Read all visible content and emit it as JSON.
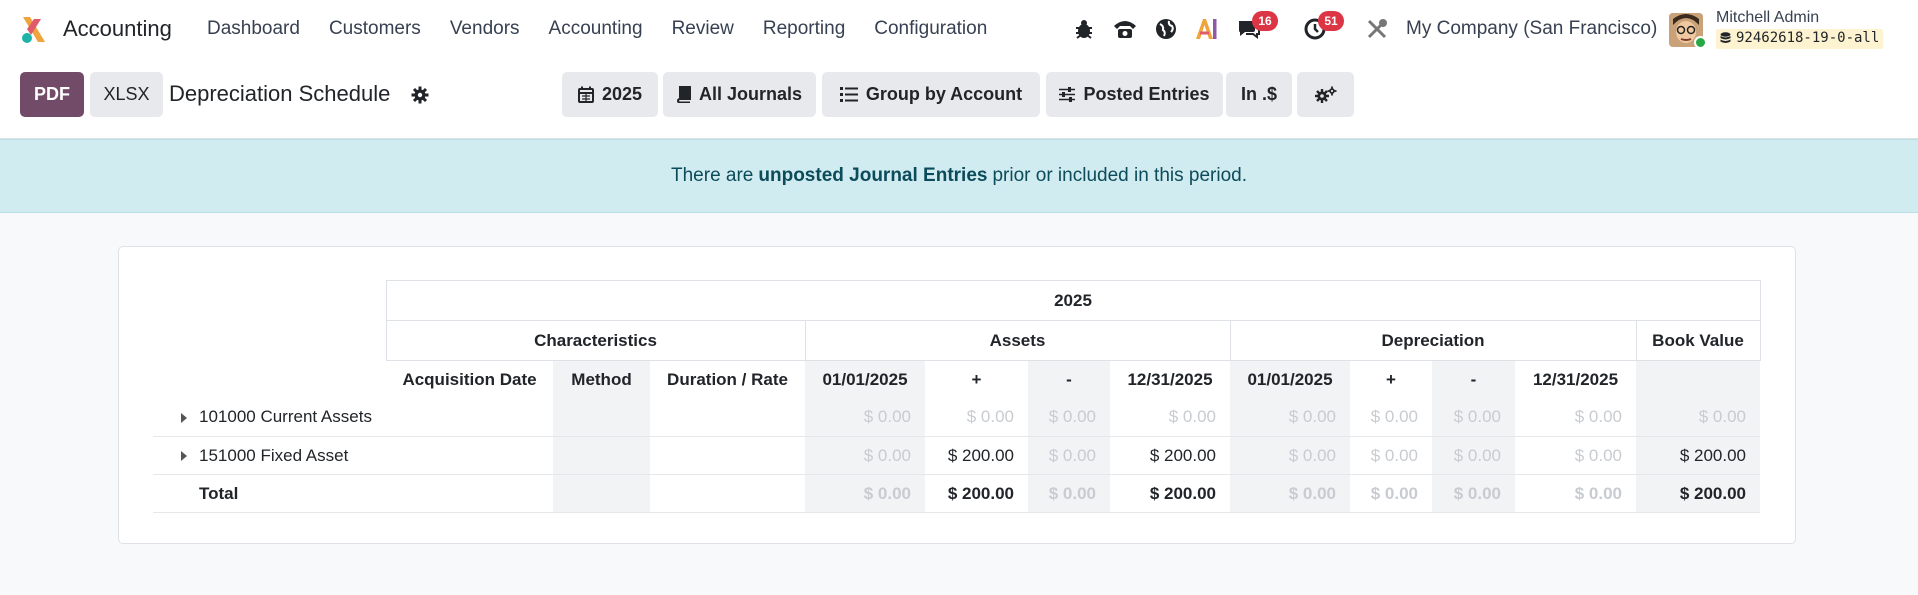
{
  "nav": {
    "app_name": "Accounting",
    "menu": [
      "Dashboard",
      "Customers",
      "Vendors",
      "Accounting",
      "Review",
      "Reporting",
      "Configuration"
    ],
    "messages_count": "16",
    "activities_count": "51",
    "company": "My Company (San Francisco)",
    "user_name": "Mitchell Admin",
    "database": "92462618-19-0-all",
    "icons": [
      "bug-icon",
      "phone-icon",
      "globe-icon",
      "ai-icon",
      "chat-icon",
      "clock-icon",
      "tools-icon"
    ]
  },
  "control": {
    "pdf_label": "PDF",
    "xlsx_label": "XLSX",
    "title": "Depreciation Schedule",
    "filters": {
      "year": "2025",
      "journals": "All Journals",
      "group": "Group by Account",
      "entries": "Posted Entries",
      "currency": "In .$"
    }
  },
  "alert": {
    "prefix": "There are",
    "strong": "unposted Journal Entries",
    "suffix": "prior or included in this period."
  },
  "report": {
    "period": "2025",
    "groups": {
      "characteristics": "Characteristics",
      "assets": "Assets",
      "depreciation": "Depreciation",
      "book_value": "Book Value"
    },
    "columns": {
      "acq_date": "Acquisition Date",
      "method": "Method",
      "duration": "Duration / Rate",
      "a_open": "01/01/2025",
      "a_plus": "+",
      "a_minus": "-",
      "a_close": "12/31/2025",
      "d_open": "01/01/2025",
      "d_plus": "+",
      "d_minus": "-",
      "d_close": "12/31/2025"
    },
    "rows": [
      {
        "name": "101000 Current Assets",
        "values": [
          "$ 0.00",
          "$ 0.00",
          "$ 0.00",
          "$ 0.00",
          "$ 0.00",
          "$ 0.00",
          "$ 0.00",
          "$ 0.00",
          "$ 0.00"
        ]
      },
      {
        "name": "151000 Fixed Asset",
        "values": [
          "$ 0.00",
          "$ 200.00",
          "$ 0.00",
          "$ 200.00",
          "$ 0.00",
          "$ 0.00",
          "$ 0.00",
          "$ 0.00",
          "$ 200.00"
        ]
      }
    ],
    "total": {
      "name": "Total",
      "values": [
        "$ 0.00",
        "$ 200.00",
        "$ 0.00",
        "$ 200.00",
        "$ 0.00",
        "$ 0.00",
        "$ 0.00",
        "$ 0.00",
        "$ 200.00"
      ]
    },
    "colors": {
      "primary": "#714b67",
      "alert_bg": "#d1ecf1",
      "muted": "#c8ccd1"
    }
  }
}
